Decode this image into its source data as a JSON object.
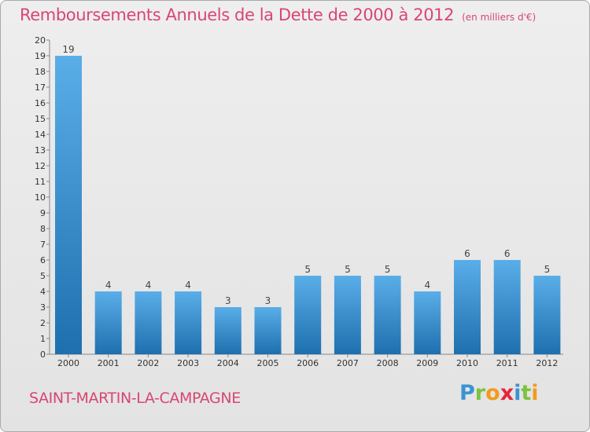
{
  "title": "Remboursements Annuels de la Dette de 2000 à 2012",
  "subtitle": "(en milliers d'€)",
  "commune": "SAINT-MARTIN-LA-CAMPAGNE",
  "brand": {
    "p": "P",
    "r": "r",
    "o": "o",
    "x": "x",
    "i": "i",
    "t": "t",
    "i2": "i"
  },
  "colors": {
    "title": "#d94672",
    "bar_top": "#5aaee8",
    "bar_bottom": "#1e6fae",
    "axis": "#888888"
  },
  "chart_data": {
    "type": "bar",
    "title": "Remboursements Annuels de la Dette de 2000 à 2012",
    "ylabel": "en milliers d'€",
    "xlabel": "",
    "categories": [
      "2000",
      "2001",
      "2002",
      "2003",
      "2004",
      "2005",
      "2006",
      "2007",
      "2008",
      "2009",
      "2010",
      "2011",
      "2012"
    ],
    "values": [
      19,
      4,
      4,
      4,
      3,
      3,
      5,
      5,
      5,
      4,
      6,
      6,
      5
    ],
    "ylim": [
      0,
      20
    ],
    "yticks": [
      0,
      1,
      2,
      3,
      4,
      5,
      6,
      7,
      8,
      9,
      10,
      11,
      12,
      13,
      14,
      15,
      16,
      17,
      18,
      19,
      20
    ],
    "grid": false
  }
}
